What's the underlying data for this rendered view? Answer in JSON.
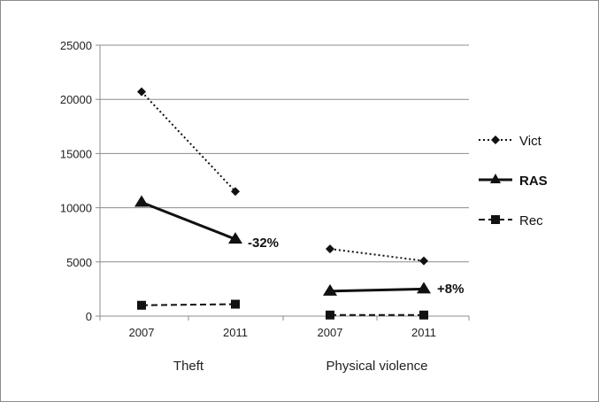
{
  "chart_data": {
    "type": "line",
    "title": "",
    "ylim": [
      0,
      25000
    ],
    "yticks": [
      0,
      5000,
      10000,
      15000,
      20000,
      25000
    ],
    "grid": true,
    "legend_position": "right",
    "groups": [
      {
        "label": "Theft",
        "x": [
          "2007",
          "2011"
        ]
      },
      {
        "label": "Physical violence",
        "x": [
          "2007",
          "2011"
        ]
      }
    ],
    "series": [
      {
        "name": "Vict",
        "style": "dotted",
        "marker": "diamond",
        "values": [
          [
            20700,
            11500
          ],
          [
            6200,
            5100
          ]
        ]
      },
      {
        "name": "RAS",
        "style": "solid",
        "marker": "triangle",
        "bold_label": true,
        "values": [
          [
            10500,
            7100
          ],
          [
            2300,
            2500
          ]
        ]
      },
      {
        "name": "Rec",
        "style": "dashed",
        "marker": "square",
        "values": [
          [
            1000,
            1100
          ],
          [
            100,
            100
          ]
        ]
      }
    ],
    "annotations": [
      "-32%",
      "+8%"
    ]
  },
  "colors": {
    "line": "#111111",
    "grid": "#8c8c8c",
    "text": "#222222"
  }
}
